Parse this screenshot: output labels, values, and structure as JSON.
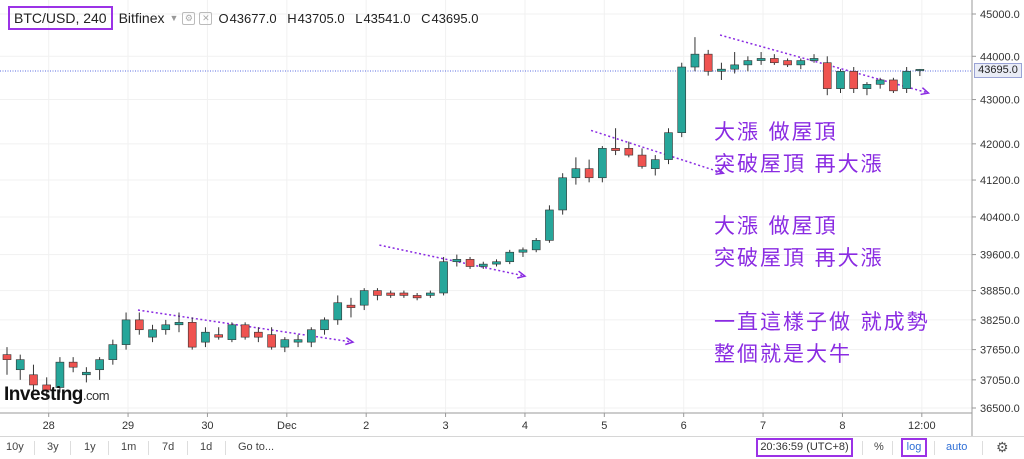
{
  "header": {
    "symbol": "BTC/USD, 240",
    "exchange": "Bitfinex",
    "ohlc": [
      {
        "k": "O",
        "v": "43677.0"
      },
      {
        "k": "H",
        "v": "43705.0"
      },
      {
        "k": "L",
        "v": "43541.0"
      },
      {
        "k": "C",
        "v": "43695.0"
      }
    ]
  },
  "logo": {
    "main": "Investing",
    "suffix": ".com"
  },
  "annotations": {
    "block1_line1": "大漲 做屋頂",
    "block1_line2": "突破屋頂 再大漲",
    "block2_line1": "大漲 做屋頂",
    "block2_line2": "突破屋頂 再大漲",
    "block3_line1": "一直這樣子做 就成勢",
    "block3_line2": "整個就是大牛"
  },
  "current_price_label": "43695.0",
  "bottom_bar": {
    "ranges": [
      "10y",
      "3y",
      "1y",
      "1m",
      "7d",
      "1d"
    ],
    "goto": "Go to...",
    "time": "20:36:59",
    "tz": "(UTC+8)",
    "percent": "%",
    "log": "log",
    "auto": "auto",
    "settings_icon": "gear-icon"
  },
  "colors": {
    "up": "#26a69a",
    "down": "#ef5350",
    "annotation": "#8a2be2",
    "highlight": "#9b32e6",
    "price_line": "#5b6ee1"
  },
  "chart_data": {
    "type": "candlestick",
    "scale": "log",
    "ylim": [
      36300,
      45300
    ],
    "y_ticks": [
      "45000.0",
      "44000.0",
      "43000.0",
      "42000.0",
      "41200.0",
      "40400.0",
      "39600.0",
      "38850.0",
      "38250.0",
      "37650.0",
      "37050.0",
      "36500.0"
    ],
    "x_ticks": [
      "28",
      "29",
      "30",
      "Dec",
      "2",
      "3",
      "4",
      "5",
      "6",
      "7",
      "8",
      "12:00"
    ],
    "current_price": 43695.0,
    "candles": [
      {
        "o": 37550,
        "h": 37700,
        "l": 37150,
        "c": 37450
      },
      {
        "o": 37250,
        "h": 37550,
        "l": 37050,
        "c": 37450
      },
      {
        "o": 37150,
        "h": 37350,
        "l": 36850,
        "c": 36950
      },
      {
        "o": 36950,
        "h": 37100,
        "l": 36700,
        "c": 36850
      },
      {
        "o": 36900,
        "h": 37500,
        "l": 36800,
        "c": 37400
      },
      {
        "o": 37400,
        "h": 37500,
        "l": 37200,
        "c": 37300
      },
      {
        "o": 37150,
        "h": 37300,
        "l": 37000,
        "c": 37200
      },
      {
        "o": 37250,
        "h": 37500,
        "l": 37050,
        "c": 37450
      },
      {
        "o": 37450,
        "h": 37850,
        "l": 37350,
        "c": 37750
      },
      {
        "o": 37750,
        "h": 38400,
        "l": 37650,
        "c": 38250
      },
      {
        "o": 38250,
        "h": 38400,
        "l": 37950,
        "c": 38050
      },
      {
        "o": 37900,
        "h": 38150,
        "l": 37800,
        "c": 38050
      },
      {
        "o": 38050,
        "h": 38250,
        "l": 37950,
        "c": 38150
      },
      {
        "o": 38150,
        "h": 38400,
        "l": 38000,
        "c": 38200
      },
      {
        "o": 38200,
        "h": 38300,
        "l": 37650,
        "c": 37700
      },
      {
        "o": 37800,
        "h": 38100,
        "l": 37700,
        "c": 38000
      },
      {
        "o": 37950,
        "h": 38100,
        "l": 37850,
        "c": 37900
      },
      {
        "o": 37850,
        "h": 38200,
        "l": 37800,
        "c": 38150
      },
      {
        "o": 38150,
        "h": 38200,
        "l": 37850,
        "c": 37900
      },
      {
        "o": 38000,
        "h": 38100,
        "l": 37800,
        "c": 37900
      },
      {
        "o": 37950,
        "h": 38100,
        "l": 37650,
        "c": 37700
      },
      {
        "o": 37700,
        "h": 37900,
        "l": 37600,
        "c": 37850
      },
      {
        "o": 37800,
        "h": 37950,
        "l": 37700,
        "c": 37850
      },
      {
        "o": 37800,
        "h": 38100,
        "l": 37700,
        "c": 38050
      },
      {
        "o": 38050,
        "h": 38300,
        "l": 37950,
        "c": 38250
      },
      {
        "o": 38250,
        "h": 38750,
        "l": 38150,
        "c": 38600
      },
      {
        "o": 38550,
        "h": 38700,
        "l": 38300,
        "c": 38500
      },
      {
        "o": 38550,
        "h": 38900,
        "l": 38450,
        "c": 38850
      },
      {
        "o": 38850,
        "h": 38900,
        "l": 38650,
        "c": 38750
      },
      {
        "o": 38800,
        "h": 38850,
        "l": 38700,
        "c": 38750
      },
      {
        "o": 38800,
        "h": 38850,
        "l": 38700,
        "c": 38750
      },
      {
        "o": 38750,
        "h": 38800,
        "l": 38650,
        "c": 38700
      },
      {
        "o": 38750,
        "h": 38850,
        "l": 38700,
        "c": 38800
      },
      {
        "o": 38800,
        "h": 39550,
        "l": 38750,
        "c": 39450
      },
      {
        "o": 39450,
        "h": 39600,
        "l": 39350,
        "c": 39500
      },
      {
        "o": 39500,
        "h": 39550,
        "l": 39300,
        "c": 39350
      },
      {
        "o": 39350,
        "h": 39450,
        "l": 39300,
        "c": 39400
      },
      {
        "o": 39400,
        "h": 39500,
        "l": 39350,
        "c": 39450
      },
      {
        "o": 39450,
        "h": 39700,
        "l": 39400,
        "c": 39650
      },
      {
        "o": 39650,
        "h": 39750,
        "l": 39550,
        "c": 39700
      },
      {
        "o": 39700,
        "h": 39950,
        "l": 39650,
        "c": 39900
      },
      {
        "o": 39900,
        "h": 40650,
        "l": 39850,
        "c": 40550
      },
      {
        "o": 40550,
        "h": 41350,
        "l": 40450,
        "c": 41250
      },
      {
        "o": 41250,
        "h": 41700,
        "l": 41100,
        "c": 41450
      },
      {
        "o": 41450,
        "h": 41650,
        "l": 41150,
        "c": 41250
      },
      {
        "o": 41250,
        "h": 41950,
        "l": 41150,
        "c": 41900
      },
      {
        "o": 41900,
        "h": 42350,
        "l": 41750,
        "c": 41850
      },
      {
        "o": 41900,
        "h": 42050,
        "l": 41700,
        "c": 41750
      },
      {
        "o": 41750,
        "h": 41900,
        "l": 41450,
        "c": 41500
      },
      {
        "o": 41450,
        "h": 41750,
        "l": 41300,
        "c": 41650
      },
      {
        "o": 41650,
        "h": 42350,
        "l": 41550,
        "c": 42250
      },
      {
        "o": 42250,
        "h": 43850,
        "l": 42150,
        "c": 43750
      },
      {
        "o": 43750,
        "h": 44450,
        "l": 43650,
        "c": 44050
      },
      {
        "o": 44050,
        "h": 44150,
        "l": 43550,
        "c": 43650
      },
      {
        "o": 43650,
        "h": 43850,
        "l": 43450,
        "c": 43700
      },
      {
        "o": 43700,
        "h": 44100,
        "l": 43600,
        "c": 43800
      },
      {
        "o": 43800,
        "h": 44000,
        "l": 43650,
        "c": 43900
      },
      {
        "o": 43900,
        "h": 44100,
        "l": 43800,
        "c": 43950
      },
      {
        "o": 43950,
        "h": 44050,
        "l": 43800,
        "c": 43850
      },
      {
        "o": 43900,
        "h": 43950,
        "l": 43750,
        "c": 43800
      },
      {
        "o": 43800,
        "h": 43950,
        "l": 43700,
        "c": 43900
      },
      {
        "o": 43900,
        "h": 44050,
        "l": 43850,
        "c": 43950
      },
      {
        "o": 43850,
        "h": 44000,
        "l": 43100,
        "c": 43250
      },
      {
        "o": 43250,
        "h": 43700,
        "l": 43150,
        "c": 43650
      },
      {
        "o": 43650,
        "h": 43750,
        "l": 43150,
        "c": 43250
      },
      {
        "o": 43250,
        "h": 43400,
        "l": 43100,
        "c": 43350
      },
      {
        "o": 43350,
        "h": 43500,
        "l": 43250,
        "c": 43450
      },
      {
        "o": 43450,
        "h": 43500,
        "l": 43150,
        "c": 43200
      },
      {
        "o": 43250,
        "h": 43750,
        "l": 43150,
        "c": 43650
      },
      {
        "o": 43677,
        "h": 43705,
        "l": 43541,
        "c": 43695
      }
    ],
    "trendlines": [
      {
        "from": [
          "Nov 28 15:00",
          38450
        ],
        "to": [
          "Dec 1 08:00",
          37800
        ]
      },
      {
        "from": [
          "Dec 1 16:00",
          39800
        ],
        "to": [
          "Dec 3 12:00",
          39150
        ]
      },
      {
        "from": [
          "Dec 4 08:00",
          42300
        ],
        "to": [
          "Dec 6 00:00",
          41350
        ]
      },
      {
        "from": [
          "Dec 5 23:00",
          44500
        ],
        "to": [
          "Dec 8 14:00",
          43150
        ]
      }
    ]
  }
}
